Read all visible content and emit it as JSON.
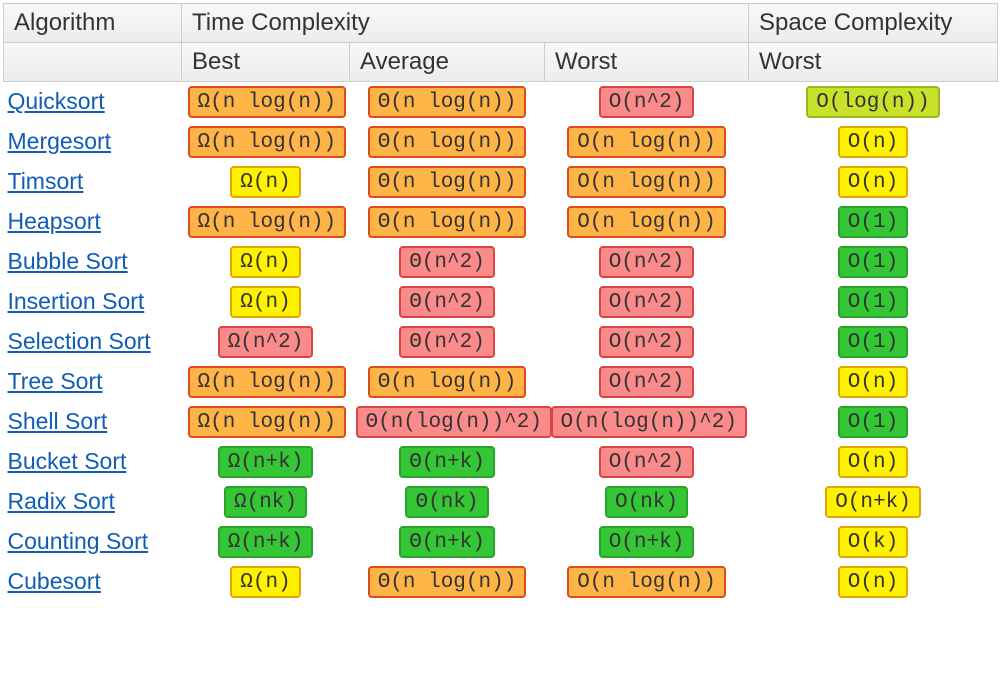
{
  "palette": {
    "green": {
      "bg": "#35c635",
      "border": "#28a428"
    },
    "yellowgreen": {
      "bg": "#c8e22b",
      "border": "#9fb422"
    },
    "yellow": {
      "bg": "#fff200",
      "border": "#e0a800"
    },
    "orange": {
      "bg": "#ffb447",
      "border": "#e04a1a"
    },
    "red": {
      "bg": "#fb8a8a",
      "border": "#d94545"
    }
  },
  "headers": {
    "algorithm": "Algorithm",
    "time": "Time Complexity",
    "space": "Space Complexity",
    "best": "Best",
    "average": "Average",
    "worst": "Worst",
    "space_worst": "Worst"
  },
  "rows": [
    {
      "name": "Quicksort",
      "best": {
        "text": "Ω(n log(n))",
        "color": "orange"
      },
      "average": {
        "text": "Θ(n log(n))",
        "color": "orange"
      },
      "worst": {
        "text": "O(n^2)",
        "color": "red"
      },
      "space": {
        "text": "O(log(n))",
        "color": "yellowgreen"
      }
    },
    {
      "name": "Mergesort",
      "best": {
        "text": "Ω(n log(n))",
        "color": "orange"
      },
      "average": {
        "text": "Θ(n log(n))",
        "color": "orange"
      },
      "worst": {
        "text": "O(n log(n))",
        "color": "orange"
      },
      "space": {
        "text": "O(n)",
        "color": "yellow"
      }
    },
    {
      "name": "Timsort",
      "best": {
        "text": "Ω(n)",
        "color": "yellow"
      },
      "average": {
        "text": "Θ(n log(n))",
        "color": "orange"
      },
      "worst": {
        "text": "O(n log(n))",
        "color": "orange"
      },
      "space": {
        "text": "O(n)",
        "color": "yellow"
      }
    },
    {
      "name": "Heapsort",
      "best": {
        "text": "Ω(n log(n))",
        "color": "orange"
      },
      "average": {
        "text": "Θ(n log(n))",
        "color": "orange"
      },
      "worst": {
        "text": "O(n log(n))",
        "color": "orange"
      },
      "space": {
        "text": "O(1)",
        "color": "green"
      }
    },
    {
      "name": "Bubble Sort",
      "best": {
        "text": "Ω(n)",
        "color": "yellow"
      },
      "average": {
        "text": "Θ(n^2)",
        "color": "red"
      },
      "worst": {
        "text": "O(n^2)",
        "color": "red"
      },
      "space": {
        "text": "O(1)",
        "color": "green"
      }
    },
    {
      "name": "Insertion Sort",
      "best": {
        "text": "Ω(n)",
        "color": "yellow"
      },
      "average": {
        "text": "Θ(n^2)",
        "color": "red"
      },
      "worst": {
        "text": "O(n^2)",
        "color": "red"
      },
      "space": {
        "text": "O(1)",
        "color": "green"
      }
    },
    {
      "name": "Selection Sort",
      "best": {
        "text": "Ω(n^2)",
        "color": "red"
      },
      "average": {
        "text": "Θ(n^2)",
        "color": "red"
      },
      "worst": {
        "text": "O(n^2)",
        "color": "red"
      },
      "space": {
        "text": "O(1)",
        "color": "green"
      }
    },
    {
      "name": "Tree Sort",
      "best": {
        "text": "Ω(n log(n))",
        "color": "orange"
      },
      "average": {
        "text": "Θ(n log(n))",
        "color": "orange"
      },
      "worst": {
        "text": "O(n^2)",
        "color": "red"
      },
      "space": {
        "text": "O(n)",
        "color": "yellow"
      }
    },
    {
      "name": "Shell Sort",
      "best": {
        "text": "Ω(n log(n))",
        "color": "orange"
      },
      "average": {
        "text": "Θ(n(log(n))^2)",
        "color": "red"
      },
      "worst": {
        "text": "O(n(log(n))^2)",
        "color": "red"
      },
      "space": {
        "text": "O(1)",
        "color": "green"
      }
    },
    {
      "name": "Bucket Sort",
      "best": {
        "text": "Ω(n+k)",
        "color": "green"
      },
      "average": {
        "text": "Θ(n+k)",
        "color": "green"
      },
      "worst": {
        "text": "O(n^2)",
        "color": "red"
      },
      "space": {
        "text": "O(n)",
        "color": "yellow"
      }
    },
    {
      "name": "Radix Sort",
      "best": {
        "text": "Ω(nk)",
        "color": "green"
      },
      "average": {
        "text": "Θ(nk)",
        "color": "green"
      },
      "worst": {
        "text": "O(nk)",
        "color": "green"
      },
      "space": {
        "text": "O(n+k)",
        "color": "yellow"
      }
    },
    {
      "name": "Counting Sort",
      "best": {
        "text": "Ω(n+k)",
        "color": "green"
      },
      "average": {
        "text": "Θ(n+k)",
        "color": "green"
      },
      "worst": {
        "text": "O(n+k)",
        "color": "green"
      },
      "space": {
        "text": "O(k)",
        "color": "yellow"
      }
    },
    {
      "name": "Cubesort",
      "best": {
        "text": "Ω(n)",
        "color": "yellow"
      },
      "average": {
        "text": "Θ(n log(n))",
        "color": "orange"
      },
      "worst": {
        "text": "O(n log(n))",
        "color": "orange"
      },
      "space": {
        "text": "O(n)",
        "color": "yellow"
      }
    }
  ]
}
